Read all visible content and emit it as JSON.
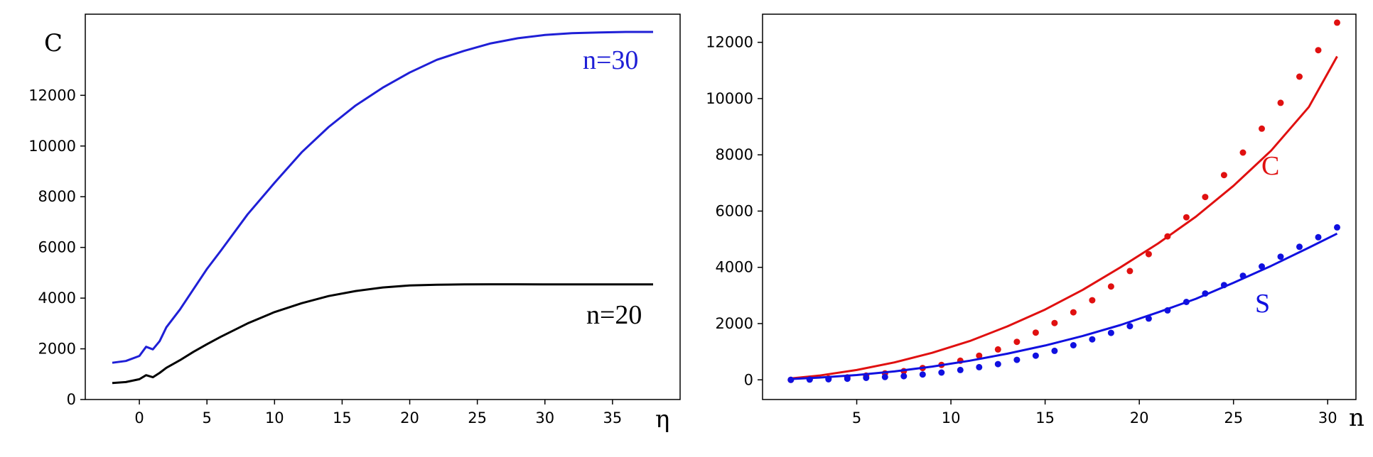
{
  "chart_data": [
    {
      "type": "line",
      "ylabel": "C",
      "xlabel": "η",
      "xlim": [
        -4,
        40
      ],
      "ylim": [
        0,
        15200
      ],
      "xticks": [
        0,
        5,
        10,
        15,
        20,
        25,
        30,
        35
      ],
      "yticks": [
        0,
        2000,
        4000,
        6000,
        8000,
        10000,
        12000
      ],
      "grid": false,
      "series": [
        {
          "name": "n=30",
          "color": "#1f1fd6",
          "x": [
            -2,
            -1,
            0,
            0.5,
            1,
            1.5,
            2,
            3,
            4,
            5,
            6,
            8,
            10,
            12,
            14,
            16,
            18,
            20,
            22,
            24,
            26,
            28,
            30,
            32,
            34,
            36,
            38
          ],
          "y": [
            1450,
            1520,
            1720,
            2080,
            1980,
            2300,
            2850,
            3550,
            4350,
            5150,
            5850,
            7300,
            8550,
            9750,
            10750,
            11600,
            12300,
            12900,
            13400,
            13750,
            14050,
            14250,
            14380,
            14450,
            14480,
            14500,
            14500
          ]
        },
        {
          "name": "n=20",
          "color": "#000000",
          "x": [
            -2,
            -1,
            0,
            0.5,
            1,
            1.5,
            2,
            3,
            4,
            5,
            6,
            8,
            10,
            12,
            14,
            16,
            18,
            20,
            22,
            24,
            26,
            28,
            30,
            32,
            34,
            36,
            38
          ],
          "y": [
            650,
            690,
            800,
            960,
            880,
            1050,
            1250,
            1550,
            1880,
            2180,
            2470,
            3000,
            3450,
            3800,
            4080,
            4280,
            4420,
            4500,
            4530,
            4540,
            4545,
            4545,
            4540,
            4540,
            4540,
            4540,
            4540
          ]
        }
      ]
    },
    {
      "type": "scatter",
      "xlabel": "n",
      "xlim": [
        0,
        31.5
      ],
      "ylim": [
        -700,
        13000
      ],
      "xticks": [
        5,
        10,
        15,
        20,
        25,
        30
      ],
      "yticks": [
        0,
        2000,
        4000,
        6000,
        8000,
        10000,
        12000
      ],
      "grid": false,
      "series": [
        {
          "name": "C",
          "color": "#e01010",
          "points_x": [
            1.5,
            2.5,
            3.5,
            4.5,
            5.5,
            6.5,
            7.5,
            8.5,
            9.5,
            10.5,
            11.5,
            12.5,
            13.5,
            14.5,
            15.5,
            16.5,
            17.5,
            18.5,
            19.5,
            20.5,
            21.5,
            22.5,
            23.5,
            24.5,
            25.5,
            26.5,
            27.5,
            28.5,
            29.5,
            30.5
          ],
          "points_y": [
            0,
            20,
            50,
            90,
            150,
            230,
            310,
            420,
            530,
            680,
            860,
            1080,
            1350,
            1680,
            2020,
            2400,
            2830,
            3320,
            3870,
            4470,
            5100,
            5780,
            6500,
            7280,
            8080,
            8930,
            9850,
            10780,
            11720,
            12700
          ],
          "fit_x": [
            1.5,
            3,
            5,
            7,
            9,
            11,
            13,
            15,
            17,
            19,
            21,
            23,
            25,
            27,
            29,
            30.5
          ],
          "fit_y": [
            50,
            150,
            350,
            620,
            960,
            1380,
            1900,
            2500,
            3200,
            4000,
            4850,
            5800,
            6900,
            8150,
            9700,
            11500
          ]
        },
        {
          "name": "S",
          "color": "#1010e0",
          "points_x": [
            1.5,
            2.5,
            3.5,
            4.5,
            5.5,
            6.5,
            7.5,
            8.5,
            9.5,
            10.5,
            11.5,
            12.5,
            13.5,
            14.5,
            15.5,
            16.5,
            17.5,
            18.5,
            19.5,
            20.5,
            21.5,
            22.5,
            23.5,
            24.5,
            25.5,
            26.5,
            27.5,
            28.5,
            29.5,
            30.5
          ],
          "points_y": [
            0,
            10,
            20,
            40,
            70,
            100,
            130,
            190,
            260,
            350,
            450,
            560,
            710,
            860,
            1030,
            1230,
            1440,
            1670,
            1910,
            2180,
            2470,
            2770,
            3070,
            3370,
            3700,
            4030,
            4380,
            4730,
            5070,
            5420
          ],
          "fit_x": [
            1.5,
            3,
            5,
            7,
            9,
            11,
            13,
            15,
            17,
            19,
            21,
            23,
            25,
            27,
            29,
            30.5
          ],
          "fit_y": [
            30,
            80,
            170,
            300,
            470,
            680,
            930,
            1220,
            1560,
            1950,
            2400,
            2880,
            3450,
            4050,
            4700,
            5200
          ]
        }
      ]
    }
  ]
}
